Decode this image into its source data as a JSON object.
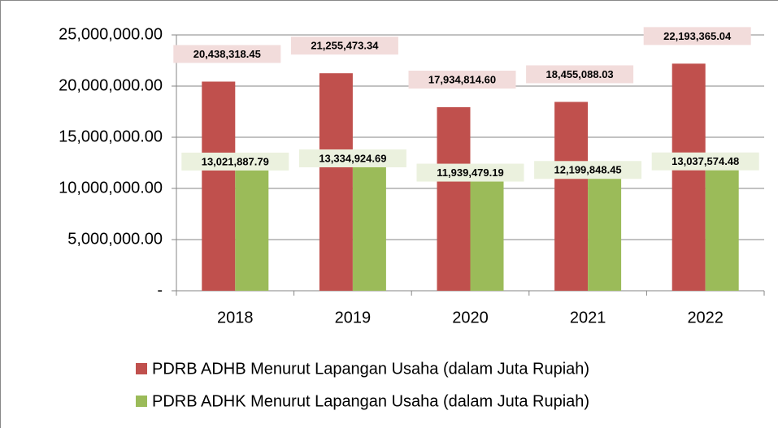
{
  "chart_data": {
    "type": "bar",
    "categories": [
      "2018",
      "2019",
      "2020",
      "2021",
      "2022"
    ],
    "series": [
      {
        "name": "PDRB ADHB Menurut Lapangan Usaha (dalam Juta Rupiah)",
        "color": "#c0504d",
        "label_bg": "#f2dcdb",
        "values": [
          20438318.45,
          21255473.34,
          17934814.6,
          18455088.03,
          22193365.04
        ],
        "value_labels": [
          "20,438,318.45",
          "21,255,473.34",
          "17,934,814.60",
          "18,455,088.03",
          "22,193,365.04"
        ]
      },
      {
        "name": "PDRB ADHK Menurut Lapangan Usaha (dalam Juta Rupiah)",
        "color": "#9bbb59",
        "label_bg": "#ebf1de",
        "values": [
          13021887.79,
          13334924.69,
          11939479.19,
          12199848.45,
          13037574.48
        ],
        "value_labels": [
          "13,021,887.79",
          "13,334,924.69",
          "11,939,479.19",
          "12,199,848.45",
          "13,037,574.48"
        ]
      }
    ],
    "ylim": [
      0,
      25000000
    ],
    "yticks": [
      {
        "value": 0,
        "label": "-"
      },
      {
        "value": 5000000,
        "label": "5,000,000.00"
      },
      {
        "value": 10000000,
        "label": "10,000,000.00"
      },
      {
        "value": 15000000,
        "label": "15,000,000.00"
      },
      {
        "value": 20000000,
        "label": "20,000,000.00"
      },
      {
        "value": 25000000,
        "label": "25,000,000.00"
      }
    ],
    "grid": true,
    "legend": "bottom"
  }
}
